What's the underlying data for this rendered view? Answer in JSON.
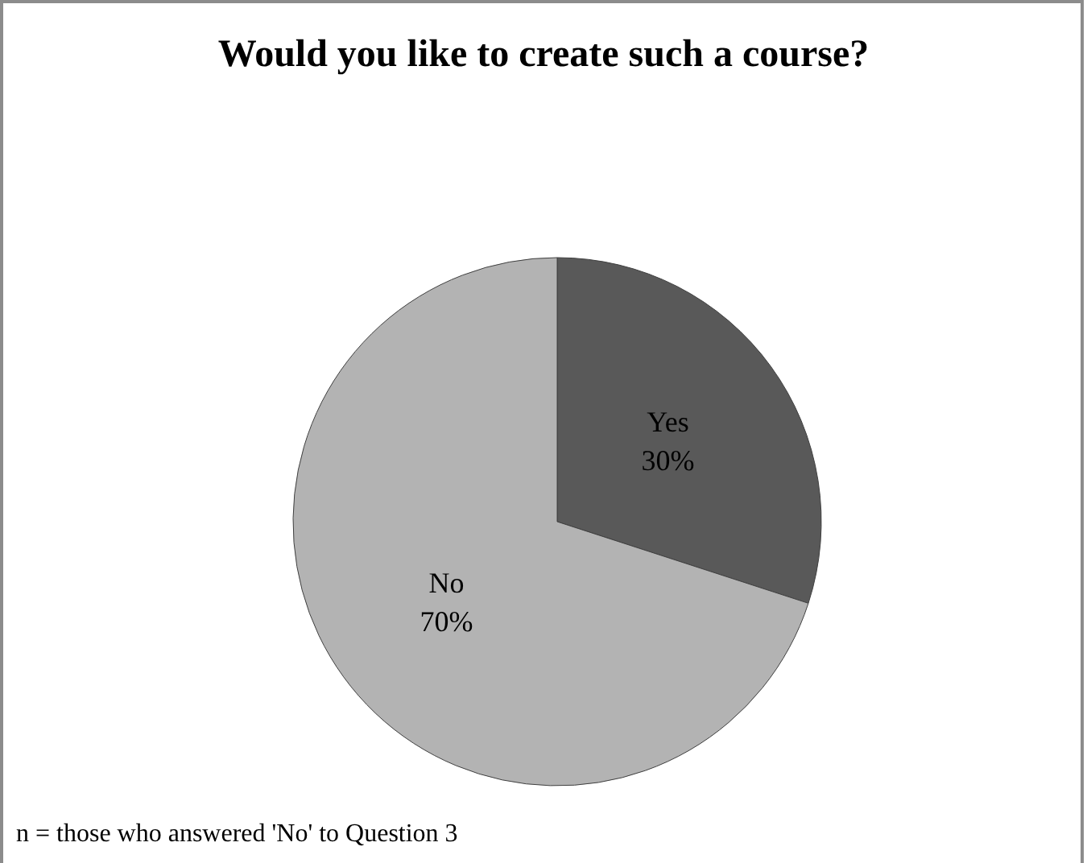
{
  "chart_data": {
    "type": "pie",
    "title": "Would you like to create such a course?",
    "categories": [
      "Yes",
      "No"
    ],
    "values": [
      30,
      70
    ],
    "colors": [
      "#595959",
      "#b3b3b3"
    ],
    "value_labels": [
      "30%",
      "70%"
    ],
    "legend": false,
    "annotations": [
      "n = those who answered 'No' to Question 3"
    ]
  }
}
